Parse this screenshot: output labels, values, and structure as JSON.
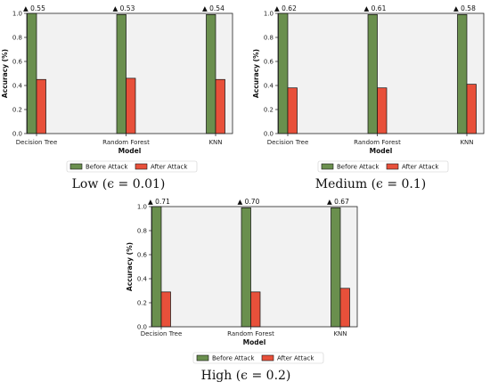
{
  "chart_data": [
    {
      "type": "bar",
      "caption": "Low (ϵ = 0.01)",
      "xlabel": "Model",
      "ylabel": "Accuracy (%)",
      "ylim": [
        0,
        1.0
      ],
      "yticks": [
        "0.0",
        "0.2",
        "0.4",
        "0.6",
        "0.8",
        "1.0"
      ],
      "categories": [
        "Decision Tree",
        "Random Forest",
        "KNN"
      ],
      "series": [
        {
          "name": "Before Attack",
          "color": "#6a8f4e",
          "values": [
            1.0,
            0.99,
            0.99
          ]
        },
        {
          "name": "After Attack",
          "color": "#e8503a",
          "values": [
            0.45,
            0.46,
            0.45
          ]
        }
      ],
      "drop_labels": [
        "▲ 0.55",
        "▲ 0.53",
        "▲ 0.54"
      ],
      "legend": "bottom-center",
      "grid": false
    },
    {
      "type": "bar",
      "caption": "Medium (ϵ = 0.1)",
      "xlabel": "Model",
      "ylabel": "Accuracy (%)",
      "ylim": [
        0,
        1.0
      ],
      "yticks": [
        "0.0",
        "0.2",
        "0.4",
        "0.6",
        "0.8",
        "1.0"
      ],
      "categories": [
        "Decision Tree",
        "Random Forest",
        "KNN"
      ],
      "series": [
        {
          "name": "Before Attack",
          "color": "#6a8f4e",
          "values": [
            1.0,
            0.99,
            0.99
          ]
        },
        {
          "name": "After Attack",
          "color": "#e8503a",
          "values": [
            0.38,
            0.38,
            0.41
          ]
        }
      ],
      "drop_labels": [
        "▲ 0.62",
        "▲ 0.61",
        "▲ 0.58"
      ],
      "legend": "bottom-center",
      "grid": false
    },
    {
      "type": "bar",
      "caption": "High (ϵ = 0.2)",
      "xlabel": "Model",
      "ylabel": "Accuracy (%)",
      "ylim": [
        0,
        1.0
      ],
      "yticks": [
        "0.0",
        "0.2",
        "0.4",
        "0.6",
        "0.8",
        "1.0"
      ],
      "categories": [
        "Decision Tree",
        "Random Forest",
        "KNN"
      ],
      "series": [
        {
          "name": "Before Attack",
          "color": "#6a8f4e",
          "values": [
            1.0,
            0.99,
            0.99
          ]
        },
        {
          "name": "After Attack",
          "color": "#e8503a",
          "values": [
            0.29,
            0.29,
            0.32
          ]
        }
      ],
      "drop_labels": [
        "▲ 0.71",
        "▲ 0.70",
        "▲ 0.67"
      ],
      "legend": "bottom-center",
      "grid": false
    }
  ]
}
